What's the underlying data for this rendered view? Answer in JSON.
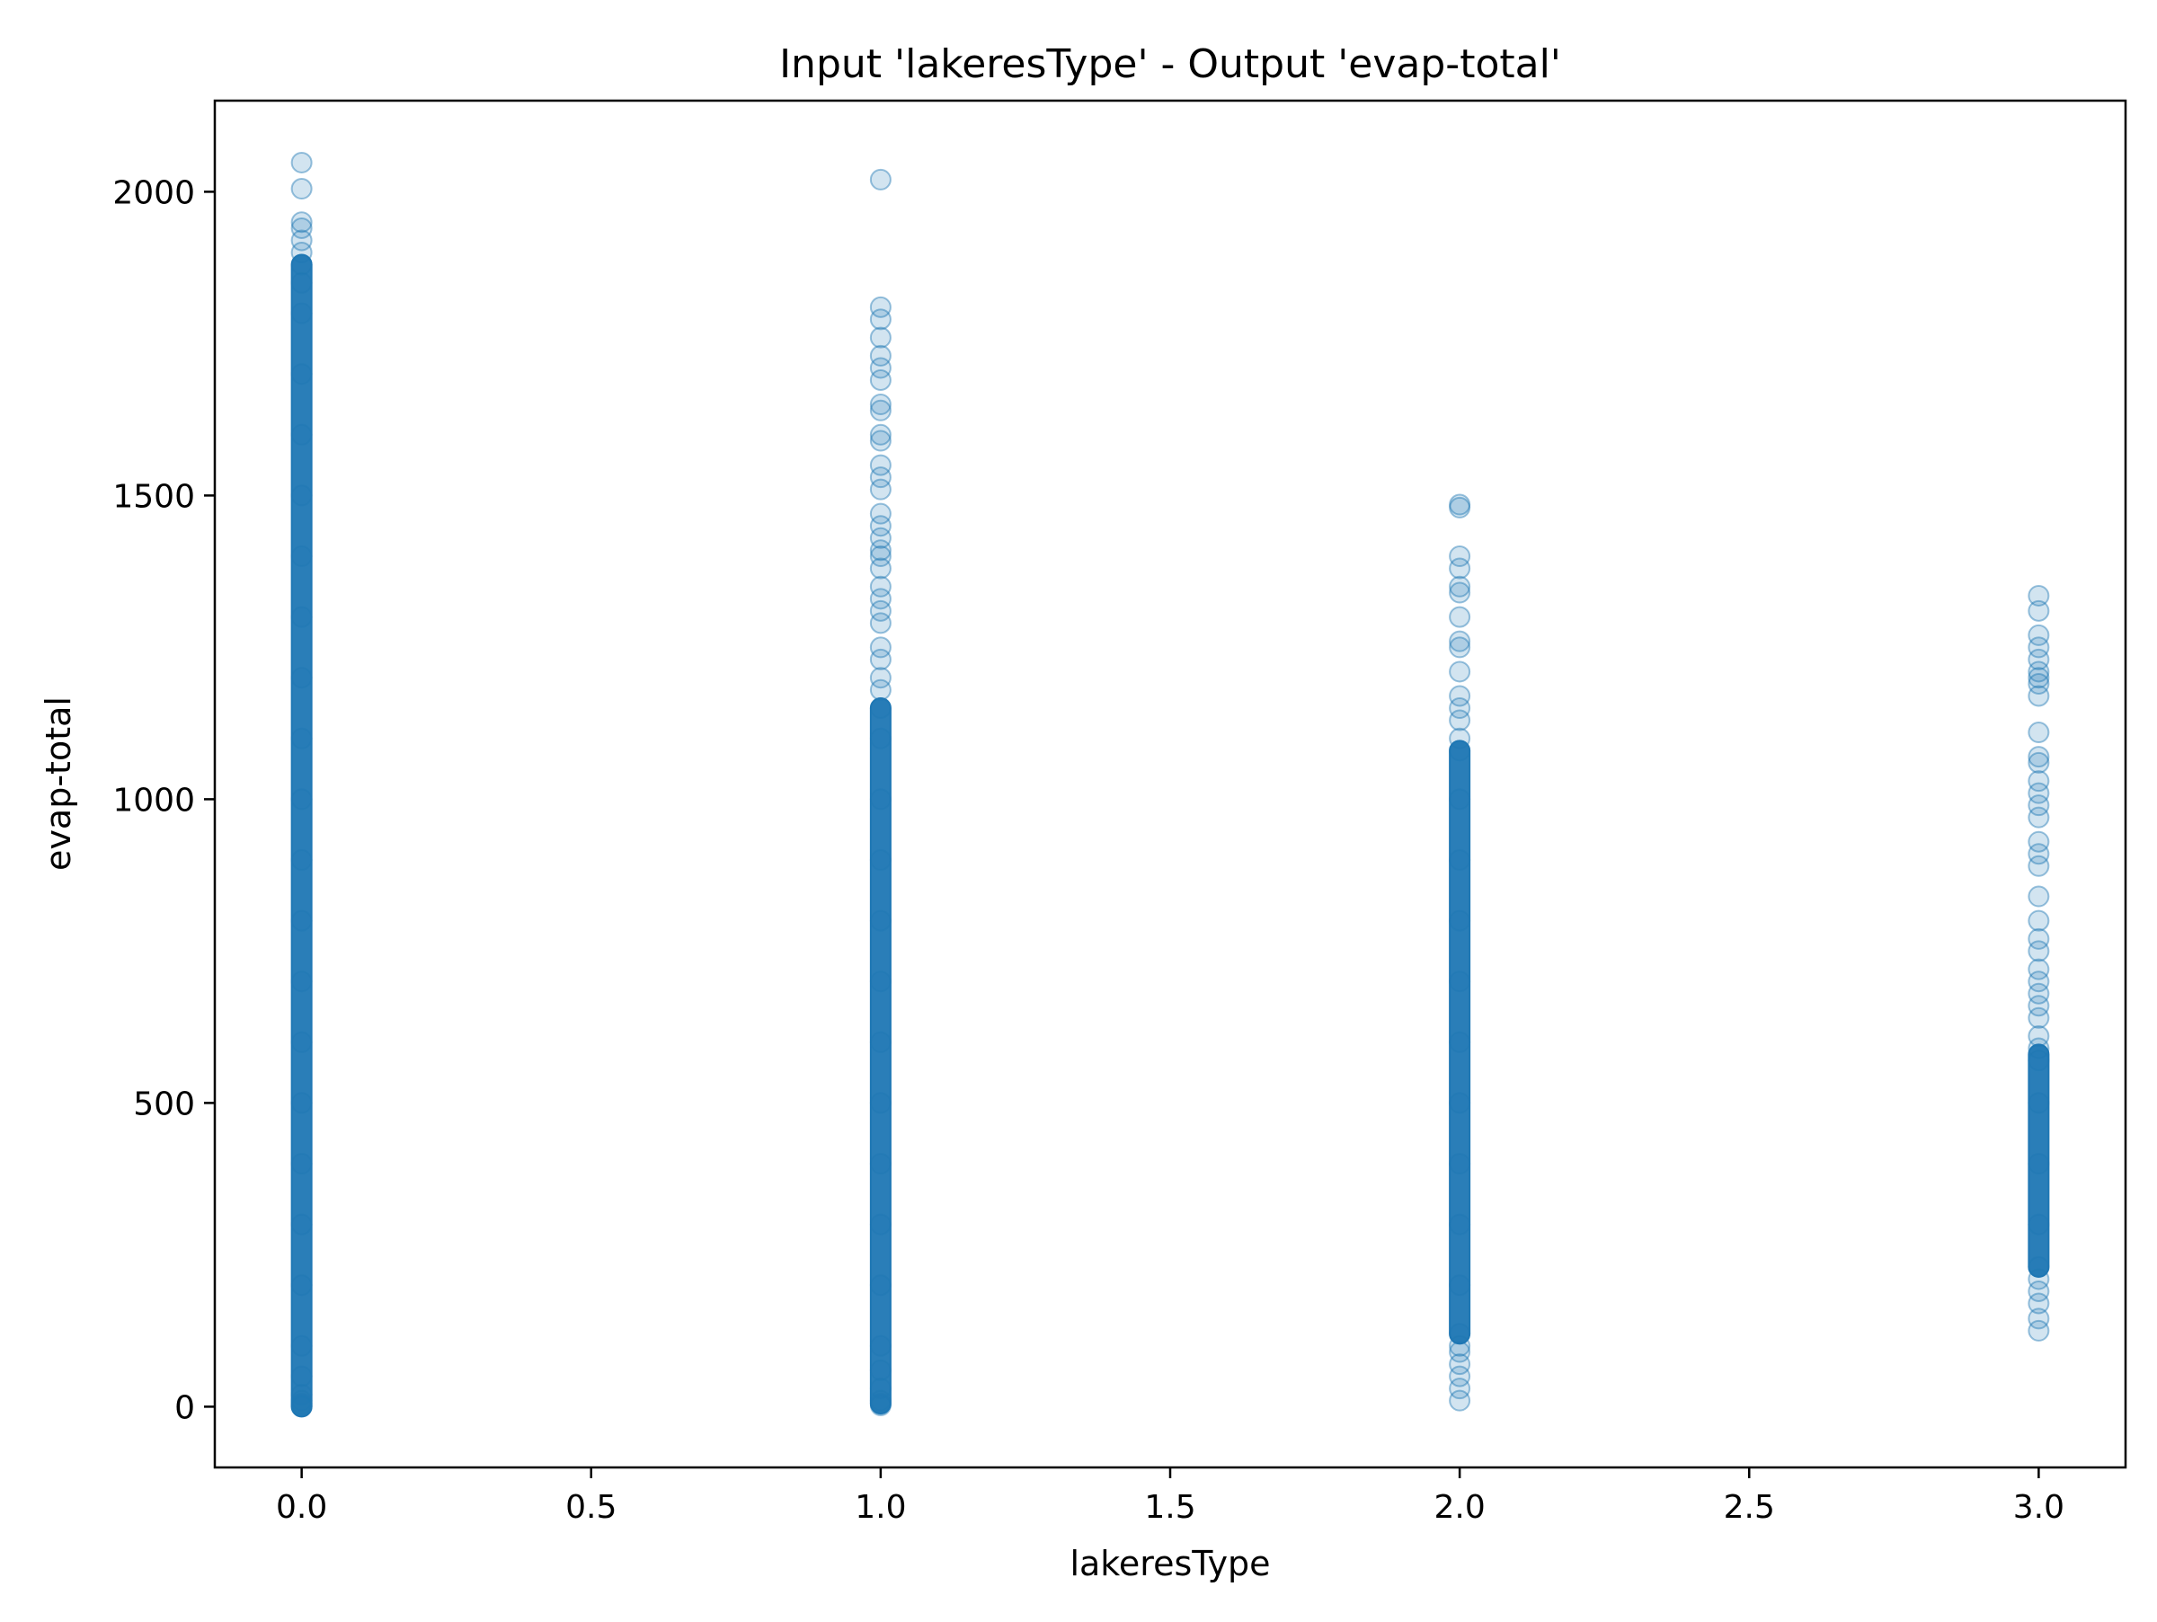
{
  "chart_data": {
    "type": "scatter",
    "title": "Input 'lakeresType' - Output 'evap-total'",
    "xlabel": "lakeresType",
    "ylabel": "evap-total",
    "xlim": [
      -0.15,
      3.15
    ],
    "ylim": [
      -100,
      2150
    ],
    "xticks": [
      0.0,
      0.5,
      1.0,
      1.5,
      2.0,
      2.5,
      3.0
    ],
    "xtick_labels": [
      "0.0",
      "0.5",
      "1.0",
      "1.5",
      "2.0",
      "2.5",
      "3.0"
    ],
    "yticks": [
      0,
      500,
      1000,
      1500,
      2000
    ],
    "ytick_labels": [
      "0",
      "500",
      "1000",
      "1500",
      "2000"
    ],
    "grid": false,
    "legend": "none",
    "marker_color": "#1f77b4",
    "marker_alpha": 0.2,
    "series": [
      {
        "x": 0,
        "dense_range": [
          0,
          1880
        ],
        "y": [
          0,
          2,
          5,
          10,
          20,
          50,
          100,
          200,
          300,
          400,
          500,
          600,
          700,
          800,
          900,
          1000,
          1100,
          1200,
          1300,
          1400,
          1500,
          1600,
          1700,
          1800,
          1850,
          1880,
          1900,
          1920,
          1940,
          1950,
          2005,
          2048
        ]
      },
      {
        "x": 1,
        "dense_range": [
          5,
          1150
        ],
        "y": [
          2,
          5,
          10,
          30,
          60,
          100,
          200,
          300,
          400,
          500,
          600,
          700,
          800,
          900,
          1000,
          1100,
          1150,
          1180,
          1200,
          1230,
          1250,
          1290,
          1310,
          1330,
          1350,
          1380,
          1400,
          1410,
          1430,
          1450,
          1470,
          1510,
          1530,
          1550,
          1590,
          1600,
          1640,
          1650,
          1690,
          1710,
          1730,
          1760,
          1790,
          1810,
          2020
        ]
      },
      {
        "x": 2,
        "dense_range": [
          120,
          1080
        ],
        "y": [
          10,
          30,
          50,
          70,
          90,
          100,
          120,
          200,
          300,
          400,
          500,
          600,
          700,
          800,
          900,
          1000,
          1080,
          1100,
          1130,
          1150,
          1170,
          1210,
          1250,
          1260,
          1300,
          1340,
          1350,
          1380,
          1400,
          1480,
          1485
        ]
      },
      {
        "x": 3,
        "dense_range": [
          230,
          580
        ],
        "y": [
          125,
          145,
          170,
          190,
          210,
          230,
          300,
          400,
          500,
          570,
          590,
          610,
          640,
          660,
          680,
          700,
          720,
          750,
          770,
          800,
          840,
          890,
          910,
          930,
          970,
          990,
          1010,
          1030,
          1060,
          1070,
          1110,
          1170,
          1190,
          1200,
          1210,
          1230,
          1250,
          1270,
          1310,
          1335
        ]
      }
    ]
  }
}
